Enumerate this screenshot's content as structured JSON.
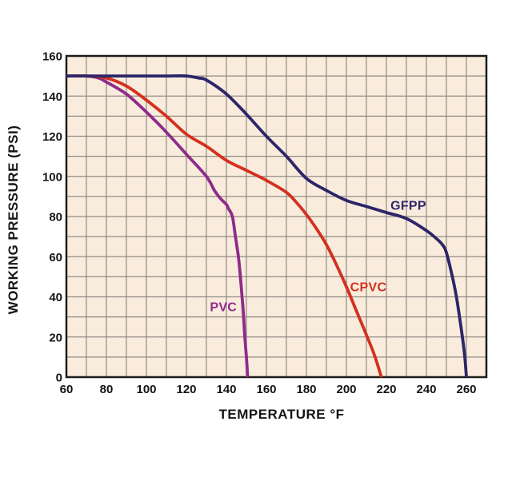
{
  "chart_data": {
    "type": "line",
    "title": "",
    "xlabel": "TEMPERATURE °F",
    "ylabel": "WORKING PRESSURE (PSI)",
    "xlim": [
      60,
      270
    ],
    "ylim": [
      0,
      160
    ],
    "x_ticks": [
      60,
      80,
      100,
      120,
      140,
      160,
      180,
      200,
      220,
      240,
      260
    ],
    "y_ticks": [
      0,
      20,
      40,
      60,
      80,
      100,
      120,
      140,
      160
    ],
    "minor_grid_step_x": 10,
    "minor_grid_step_y": 10,
    "grid": true,
    "legend_position": "inline-curve-labels",
    "colors": {
      "background": "#ffffff",
      "plot_bg": "#f9ecdc",
      "grid": "#908c86",
      "frame": "#1c1c1c",
      "text": "#151515"
    },
    "series": [
      {
        "name": "PVC",
        "color": "#8f2b8a",
        "label_at": [
          138.5,
          35
        ],
        "points": [
          [
            60,
            150
          ],
          [
            70,
            150
          ],
          [
            76,
            149
          ],
          [
            80,
            147
          ],
          [
            90,
            141
          ],
          [
            100,
            132
          ],
          [
            110,
            122
          ],
          [
            120,
            111
          ],
          [
            130,
            100
          ],
          [
            134,
            93
          ],
          [
            137,
            89
          ],
          [
            140,
            86
          ],
          [
            141,
            84
          ],
          [
            143,
            80
          ],
          [
            144.5,
            70
          ],
          [
            146,
            60
          ],
          [
            147,
            50
          ],
          [
            148,
            38
          ],
          [
            148.6,
            30
          ],
          [
            149.2,
            20
          ],
          [
            150,
            10
          ],
          [
            150.6,
            0
          ]
        ]
      },
      {
        "name": "CPVC",
        "color": "#d4301f",
        "label_at": [
          211,
          45
        ],
        "points": [
          [
            60,
            150
          ],
          [
            70,
            150
          ],
          [
            80,
            149
          ],
          [
            90,
            145
          ],
          [
            100,
            138
          ],
          [
            110,
            130
          ],
          [
            120,
            121
          ],
          [
            130,
            115
          ],
          [
            140,
            108
          ],
          [
            150,
            103
          ],
          [
            160,
            98
          ],
          [
            170,
            92
          ],
          [
            175,
            87
          ],
          [
            180,
            81
          ],
          [
            185,
            74
          ],
          [
            190,
            66
          ],
          [
            195,
            56
          ],
          [
            200,
            45
          ],
          [
            205,
            33
          ],
          [
            210,
            21
          ],
          [
            214,
            11
          ],
          [
            217.5,
            0
          ]
        ]
      },
      {
        "name": "GFPP",
        "color": "#2d2569",
        "label_at": [
          231,
          85.5
        ],
        "points": [
          [
            60,
            150
          ],
          [
            80,
            150
          ],
          [
            100,
            150
          ],
          [
            110,
            150
          ],
          [
            120,
            150
          ],
          [
            126,
            149
          ],
          [
            130,
            148
          ],
          [
            140,
            141
          ],
          [
            150,
            131
          ],
          [
            160,
            120
          ],
          [
            170,
            110
          ],
          [
            180,
            99
          ],
          [
            190,
            93
          ],
          [
            200,
            88
          ],
          [
            210,
            85
          ],
          [
            220,
            82
          ],
          [
            230,
            79
          ],
          [
            240,
            73
          ],
          [
            245,
            69
          ],
          [
            248,
            66
          ],
          [
            250,
            62
          ],
          [
            253,
            50
          ],
          [
            255,
            40
          ],
          [
            257,
            27
          ],
          [
            259,
            12
          ],
          [
            260,
            0
          ]
        ]
      }
    ]
  }
}
